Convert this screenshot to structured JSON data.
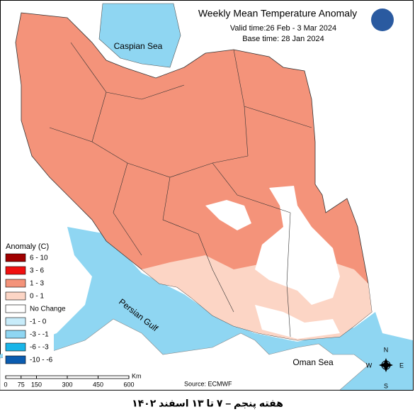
{
  "header": {
    "title": "Weekly Mean Temperature Anomaly",
    "valid_time": "Valid time:26 Feb - 3 Mar 2024",
    "base_time": "Base time: 28 Jan 2024"
  },
  "legend": {
    "title": "Anomaly (C)",
    "items": [
      {
        "label": "6 - 10",
        "color": "#a00000"
      },
      {
        "label": "3 - 6",
        "color": "#f01010"
      },
      {
        "label": "1 - 3",
        "color": "#f4937a"
      },
      {
        "label": "0 - 1",
        "color": "#fcd5c5"
      },
      {
        "label": "No Change",
        "color": "#ffffff"
      },
      {
        "label": "-1 - 0",
        "color": "#c8ecfa"
      },
      {
        "label": "-3 - -1",
        "color": "#8fd6f2"
      },
      {
        "label": "-6 - -3",
        "color": "#19b5e8"
      },
      {
        "label": "-10 - -6",
        "color": "#0a5cb0"
      }
    ]
  },
  "labels": {
    "caspian": "Caspian Sea",
    "persian_gulf": "Persian Gulf",
    "oman_sea": "Oman Sea"
  },
  "scale": {
    "ticks": [
      0,
      75,
      150,
      300,
      450,
      600
    ],
    "unit": "Km"
  },
  "compass": {
    "n": "N",
    "e": "E",
    "s": "S",
    "w": "W"
  },
  "source": "Source: ECMWF",
  "caption": "هفته پنجم – ۷ تا ۱۳ اسفند ۱۴۰۲"
}
